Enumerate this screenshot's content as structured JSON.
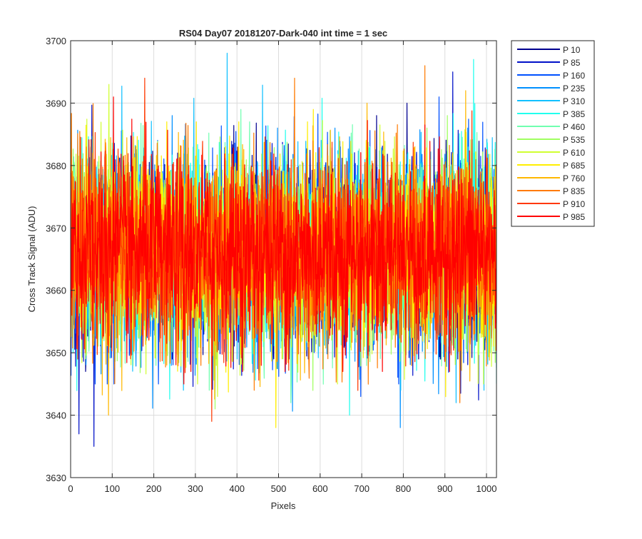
{
  "chart_data": {
    "type": "line",
    "title": "RS04 Day07 20181207-Dark-040 int time = 1 sec",
    "xlabel": "Pixels",
    "ylabel": "Cross Track Signal (ADU)",
    "xlim": [
      0,
      1024
    ],
    "ylim": [
      3630,
      3700
    ],
    "xticks": [
      0,
      100,
      200,
      300,
      400,
      500,
      600,
      700,
      800,
      900,
      1000
    ],
    "yticks": [
      3630,
      3640,
      3650,
      3660,
      3670,
      3680,
      3690,
      3700
    ],
    "grid": true,
    "legend_position": "outside-top-right",
    "noise_profile": {
      "mean": 3666,
      "std": 7.5,
      "n_points": 1024
    },
    "series": [
      {
        "name": "P 10",
        "color": "#00008f",
        "max": 3690,
        "min": 3647
      },
      {
        "name": "P 85",
        "color": "#0010c8",
        "max": 3695,
        "min": 3635
      },
      {
        "name": "P 160",
        "color": "#0050ff",
        "max": 3691,
        "min": 3643
      },
      {
        "name": "P 235",
        "color": "#0090ff",
        "max": 3688,
        "min": 3638
      },
      {
        "name": "P 310",
        "color": "#10c0ff",
        "max": 3698,
        "min": 3642
      },
      {
        "name": "P 385",
        "color": "#20ffee",
        "max": 3697,
        "min": 3640
      },
      {
        "name": "P 460",
        "color": "#70ffb0",
        "max": 3689,
        "min": 3642
      },
      {
        "name": "P 535",
        "color": "#a0ff60",
        "max": 3688,
        "min": 3641
      },
      {
        "name": "P 610",
        "color": "#d0ff30",
        "max": 3693,
        "min": 3643
      },
      {
        "name": "P 685",
        "color": "#ffee00",
        "max": 3689,
        "min": 3638
      },
      {
        "name": "P 760",
        "color": "#ffb800",
        "max": 3692,
        "min": 3640
      },
      {
        "name": "P 835",
        "color": "#ff7a00",
        "max": 3696,
        "min": 3642
      },
      {
        "name": "P 910",
        "color": "#ff3800",
        "max": 3694,
        "min": 3639
      },
      {
        "name": "P 985",
        "color": "#ff0000",
        "max": 3691,
        "min": 3645
      }
    ]
  }
}
